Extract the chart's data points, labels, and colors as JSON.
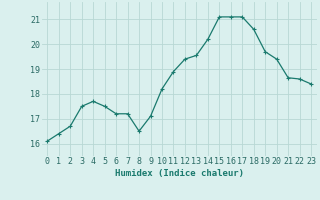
{
  "x": [
    0,
    1,
    2,
    3,
    4,
    5,
    6,
    7,
    8,
    9,
    10,
    11,
    12,
    13,
    14,
    15,
    16,
    17,
    18,
    19,
    20,
    21,
    22,
    23
  ],
  "y": [
    16.1,
    16.4,
    16.7,
    17.5,
    17.7,
    17.5,
    17.2,
    17.2,
    16.5,
    17.1,
    18.2,
    18.9,
    19.4,
    19.55,
    20.2,
    21.1,
    21.1,
    21.1,
    20.6,
    19.7,
    19.4,
    18.65,
    18.6,
    18.4
  ],
  "line_color": "#1a7a6e",
  "marker": "+",
  "markersize": 3,
  "markeredgewidth": 0.8,
  "linewidth": 0.9,
  "bg_color": "#daf0ee",
  "grid_color": "#b8d8d4",
  "xlabel": "Humidex (Indice chaleur)",
  "xlabel_fontsize": 6.5,
  "tick_fontsize": 6,
  "ylim": [
    15.5,
    21.7
  ],
  "yticks": [
    16,
    17,
    18,
    19,
    20,
    21
  ],
  "xticks": [
    0,
    1,
    2,
    3,
    4,
    5,
    6,
    7,
    8,
    9,
    10,
    11,
    12,
    13,
    14,
    15,
    16,
    17,
    18,
    19,
    20,
    21,
    22,
    23
  ]
}
